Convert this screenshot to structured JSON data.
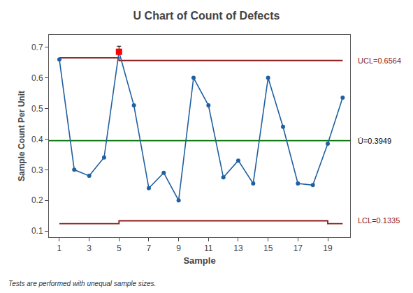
{
  "chart_data": {
    "type": "line",
    "title": "U Chart of Count of Defects",
    "xlabel": "Sample",
    "ylabel": "Sample Count Per Unit",
    "footnote": "Tests are performed with unequal sample sizes.",
    "series": [
      {
        "type": "line",
        "marker": "circle",
        "color": "#2060A0",
        "x": [
          1,
          2,
          3,
          4,
          5,
          6,
          7,
          8,
          9,
          10,
          11,
          12,
          13,
          14,
          15,
          16,
          17,
          18,
          19,
          20
        ],
        "values": [
          0.66,
          0.3,
          0.28,
          0.34,
          0.685,
          0.51,
          0.24,
          0.29,
          0.2,
          0.6,
          0.51,
          0.275,
          0.33,
          0.255,
          0.6,
          0.44,
          0.255,
          0.25,
          0.385,
          0.535
        ]
      },
      {
        "type": "line",
        "color": "#8B1A1A",
        "x": [
          1,
          5,
          5,
          20
        ],
        "values": [
          0.665,
          0.665,
          0.6564,
          0.6564
        ]
      },
      {
        "type": "line",
        "color": "#8B1A1A",
        "x": [
          1,
          5,
          5,
          19,
          19,
          20
        ],
        "values": [
          0.124,
          0.124,
          0.1335,
          0.1335,
          0.124,
          0.124
        ]
      },
      {
        "type": "scatter",
        "marker": "square",
        "color": "red",
        "x": [
          5
        ],
        "values": [
          0.685
        ],
        "error_plus": [
          0.018
        ]
      }
    ],
    "reference_lines": [
      {
        "value": 0.3949,
        "color": "#007000"
      }
    ],
    "annotations": [
      {
        "text": "UCL=0.6564",
        "y": 0.6564,
        "color": "#8B1A1A"
      },
      {
        "text": "Ū=0.3949",
        "y": 0.3949,
        "color": "black"
      },
      {
        "text": "LCL=0.1335",
        "y": 0.1335,
        "color": "#8B1A1A"
      }
    ],
    "xlim": [
      0.3,
      20.5
    ],
    "xticks": [
      1,
      3,
      5,
      7,
      9,
      11,
      13,
      15,
      17,
      19
    ],
    "ylim": [
      0.08,
      0.74
    ],
    "yticks": [
      0.1,
      0.2,
      0.3,
      0.4,
      0.5,
      0.6,
      0.7
    ],
    "grid": false
  }
}
